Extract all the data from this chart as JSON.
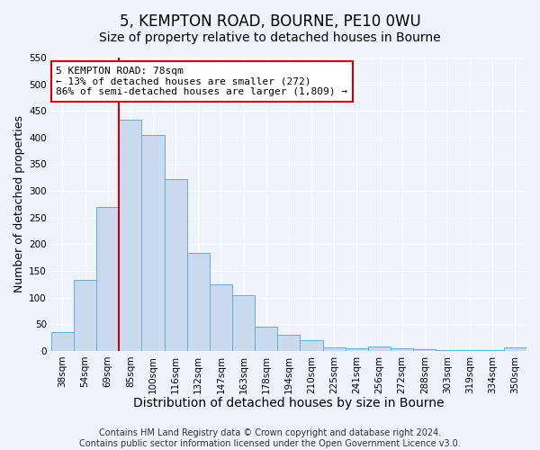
{
  "title": "5, KEMPTON ROAD, BOURNE, PE10 0WU",
  "subtitle": "Size of property relative to detached houses in Bourne",
  "xlabel": "Distribution of detached houses by size in Bourne",
  "ylabel": "Number of detached properties",
  "bar_labels": [
    "38sqm",
    "54sqm",
    "69sqm",
    "85sqm",
    "100sqm",
    "116sqm",
    "132sqm",
    "147sqm",
    "163sqm",
    "178sqm",
    "194sqm",
    "210sqm",
    "225sqm",
    "241sqm",
    "256sqm",
    "272sqm",
    "288sqm",
    "303sqm",
    "319sqm",
    "334sqm",
    "350sqm"
  ],
  "bar_values": [
    35,
    133,
    270,
    433,
    405,
    322,
    183,
    125,
    104,
    45,
    30,
    20,
    7,
    5,
    8,
    4,
    3,
    2,
    1,
    1,
    6
  ],
  "bar_color": "#c9d9ee",
  "bar_edge_color": "#6aaad4",
  "vline_color": "#cc0000",
  "ylim": [
    0,
    550
  ],
  "yticks": [
    0,
    50,
    100,
    150,
    200,
    250,
    300,
    350,
    400,
    450,
    500,
    550
  ],
  "annotation_title": "5 KEMPTON ROAD: 78sqm",
  "annotation_line1": "← 13% of detached houses are smaller (272)",
  "annotation_line2": "86% of semi-detached houses are larger (1,809) →",
  "annotation_box_color": "#ffffff",
  "annotation_box_edge": "#cc0000",
  "footer_line1": "Contains HM Land Registry data © Crown copyright and database right 2024.",
  "footer_line2": "Contains public sector information licensed under the Open Government Licence v3.0.",
  "background_color": "#eef2f9",
  "grid_color": "#ffffff",
  "title_fontsize": 12,
  "subtitle_fontsize": 10,
  "ylabel_fontsize": 9,
  "xlabel_fontsize": 10,
  "tick_fontsize": 7.5,
  "annotation_fontsize": 8,
  "footer_fontsize": 7
}
